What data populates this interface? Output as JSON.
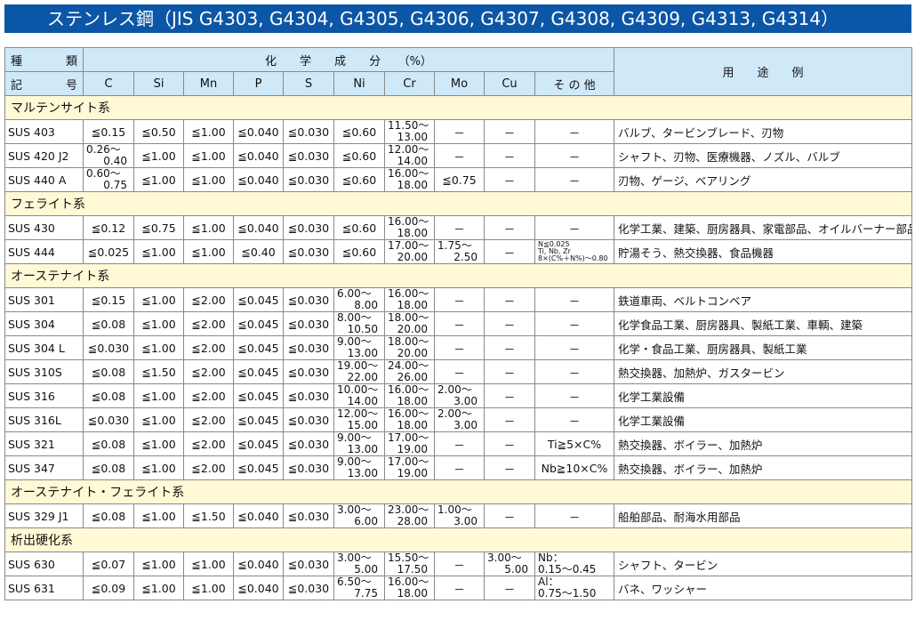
{
  "title": "ステンレス鋼（JIS G4303, G4304, G4305, G4306, G4307, G4308, G4309, G4313, G4314）",
  "header": {
    "type_top": [
      "種",
      "類"
    ],
    "type_bottom": [
      "記",
      "号"
    ],
    "composition": "化　　学　　成　　分　　（%）",
    "columns": [
      "C",
      "Si",
      "Mn",
      "P",
      "S",
      "Ni",
      "Cr",
      "Mo",
      "Cu",
      "そ の 他"
    ],
    "use": "用　　途　　例"
  },
  "sections": [
    {
      "name": "マルテンサイト系",
      "rows": [
        {
          "grade": "SUS 403",
          "cells": [
            "≦0.15",
            "≦0.50",
            "≦1.00",
            "≦0.040",
            "≦0.030",
            "≦0.60",
            [
              "11.50～",
              "13.00"
            ],
            "－",
            "－",
            "－"
          ],
          "use": "バルブ、タービンブレード、刃物"
        },
        {
          "grade": "SUS 420 J2",
          "cells": [
            [
              "0.26～",
              "0.40"
            ],
            "≦1.00",
            "≦1.00",
            "≦0.040",
            "≦0.030",
            "≦0.60",
            [
              "12.00～",
              "14.00"
            ],
            "－",
            "－",
            "－"
          ],
          "use": "シャフト、刃物、医療機器、ノズル、バルブ"
        },
        {
          "grade": "SUS 440 A",
          "cells": [
            [
              "0.60～",
              "0.75"
            ],
            "≦1.00",
            "≦1.00",
            "≦0.040",
            "≦0.030",
            "≦0.60",
            [
              "16.00～",
              "18.00"
            ],
            "≦0.75",
            "－",
            "－"
          ],
          "use": "刃物、ゲージ、ベアリング"
        }
      ]
    },
    {
      "name": "フェライト系",
      "rows": [
        {
          "grade": "SUS 430",
          "cells": [
            "≦0.12",
            "≦0.75",
            "≦1.00",
            "≦0.040",
            "≦0.030",
            "≦0.60",
            [
              "16.00～",
              "18.00"
            ],
            "－",
            "－",
            "－"
          ],
          "use": "化学工業、建築、厨房器具、家電部品、オイルバーナー部品"
        },
        {
          "grade": "SUS 444",
          "cells": [
            "≦0.025",
            "≦1.00",
            "≦1.00",
            "≦0.40",
            "≦0.030",
            "≦0.60",
            [
              "17.00～",
              "20.00"
            ],
            [
              "1.75～",
              "2.50"
            ],
            "－",
            {
              "note": [
                "N≦0.025",
                "Ti, Nb, Zr",
                "8×(C%＋N%)～0.80"
              ]
            }
          ],
          "use": "貯湯そう、熱交換器、食品機器"
        }
      ]
    },
    {
      "name": "オーステナイト系",
      "rows": [
        {
          "grade": "SUS 301",
          "cells": [
            "≦0.15",
            "≦1.00",
            "≦2.00",
            "≦0.045",
            "≦0.030",
            [
              "6.00～",
              "8.00"
            ],
            [
              "16.00～",
              "18.00"
            ],
            "－",
            "－",
            "－"
          ],
          "use": "鉄道車両、ベルトコンベア"
        },
        {
          "grade": "SUS 304",
          "cells": [
            "≦0.08",
            "≦1.00",
            "≦2.00",
            "≦0.045",
            "≦0.030",
            [
              "8.00～",
              "10.50"
            ],
            [
              "18.00～",
              "20.00"
            ],
            "－",
            "－",
            "－"
          ],
          "use": "化学食品工業、厨房器具、製紙工業、車輌、建築"
        },
        {
          "grade": "SUS 304 L",
          "cells": [
            "≦0.030",
            "≦1.00",
            "≦2.00",
            "≦0.045",
            "≦0.030",
            [
              "9.00～",
              "13.00"
            ],
            [
              "18.00～",
              "20.00"
            ],
            "－",
            "－",
            "－"
          ],
          "use": "化学・食品工業、厨房器具、製紙工業"
        },
        {
          "grade": "SUS 310S",
          "cells": [
            "≦0.08",
            "≦1.50",
            "≦2.00",
            "≦0.045",
            "≦0.030",
            [
              "19.00～",
              "22.00"
            ],
            [
              "24.00～",
              "26.00"
            ],
            "－",
            "－",
            "－"
          ],
          "use": "熱交換器、加熱炉、ガスタービン"
        },
        {
          "grade": "SUS 316",
          "cells": [
            "≦0.08",
            "≦1.00",
            "≦2.00",
            "≦0.045",
            "≦0.030",
            [
              "10.00～",
              "14.00"
            ],
            [
              "16.00～",
              "18.00"
            ],
            [
              "2.00～",
              "3.00"
            ],
            "－",
            "－"
          ],
          "use": "化学工業設備"
        },
        {
          "grade": "SUS 316L",
          "cells": [
            "≦0.030",
            "≦1.00",
            "≦2.00",
            "≦0.045",
            "≦0.030",
            [
              "12.00～",
              "15.00"
            ],
            [
              "16.00～",
              "18.00"
            ],
            [
              "2.00～",
              "3.00"
            ],
            "－",
            "－"
          ],
          "use": "化学工業設備"
        },
        {
          "grade": "SUS 321",
          "cells": [
            "≦0.08",
            "≦1.00",
            "≦2.00",
            "≦0.045",
            "≦0.030",
            [
              "9.00～",
              "13.00"
            ],
            [
              "17.00～",
              "19.00"
            ],
            "－",
            "－",
            "Ti≧5×C%"
          ],
          "use": "熱交換器、ボイラー、加熱炉"
        },
        {
          "grade": "SUS 347",
          "cells": [
            "≦0.08",
            "≦1.00",
            "≦2.00",
            "≦0.045",
            "≦0.030",
            [
              "9.00～",
              "13.00"
            ],
            [
              "17.00～",
              "19.00"
            ],
            "－",
            "－",
            "Nb≧10×C%"
          ],
          "use": "熱交換器、ボイラー、加熱炉"
        }
      ]
    },
    {
      "name": "オーステナイト・フェライト系",
      "rows": [
        {
          "grade": "SUS 329 J1",
          "cells": [
            "≦0.08",
            "≦1.00",
            "≦1.50",
            "≦0.040",
            "≦0.030",
            [
              "3.00～",
              "6.00"
            ],
            [
              "23.00～",
              "28.00"
            ],
            [
              "1.00～",
              "3.00"
            ],
            "－",
            "－"
          ],
          "use": "船舶部品、耐海水用部品"
        }
      ]
    },
    {
      "name": "析出硬化系",
      "rows": [
        {
          "grade": "SUS 630",
          "cells": [
            "≦0.07",
            "≦1.00",
            "≦1.00",
            "≦0.040",
            "≦0.030",
            [
              "3.00～",
              "5.00"
            ],
            [
              "15.50～",
              "17.50"
            ],
            "－",
            [
              "3.00～",
              "5.00"
            ],
            [
              "Nb：",
              "0.15～0.45"
            ]
          ],
          "use": "シャフト、タービン"
        },
        {
          "grade": "SUS 631",
          "cells": [
            "≦0.09",
            "≦1.00",
            "≦1.00",
            "≦0.040",
            "≦0.030",
            [
              "6.50～",
              "7.75"
            ],
            [
              "16.00～",
              "18.00"
            ],
            "－",
            "－",
            [
              "Al：",
              "0.75～1.50"
            ]
          ],
          "use": "バネ、ワッシャー"
        }
      ]
    }
  ],
  "colors": {
    "title_bg": "#0b56a6",
    "header_bg": "#cfe9f9",
    "section_bg": "#fff9d6"
  }
}
